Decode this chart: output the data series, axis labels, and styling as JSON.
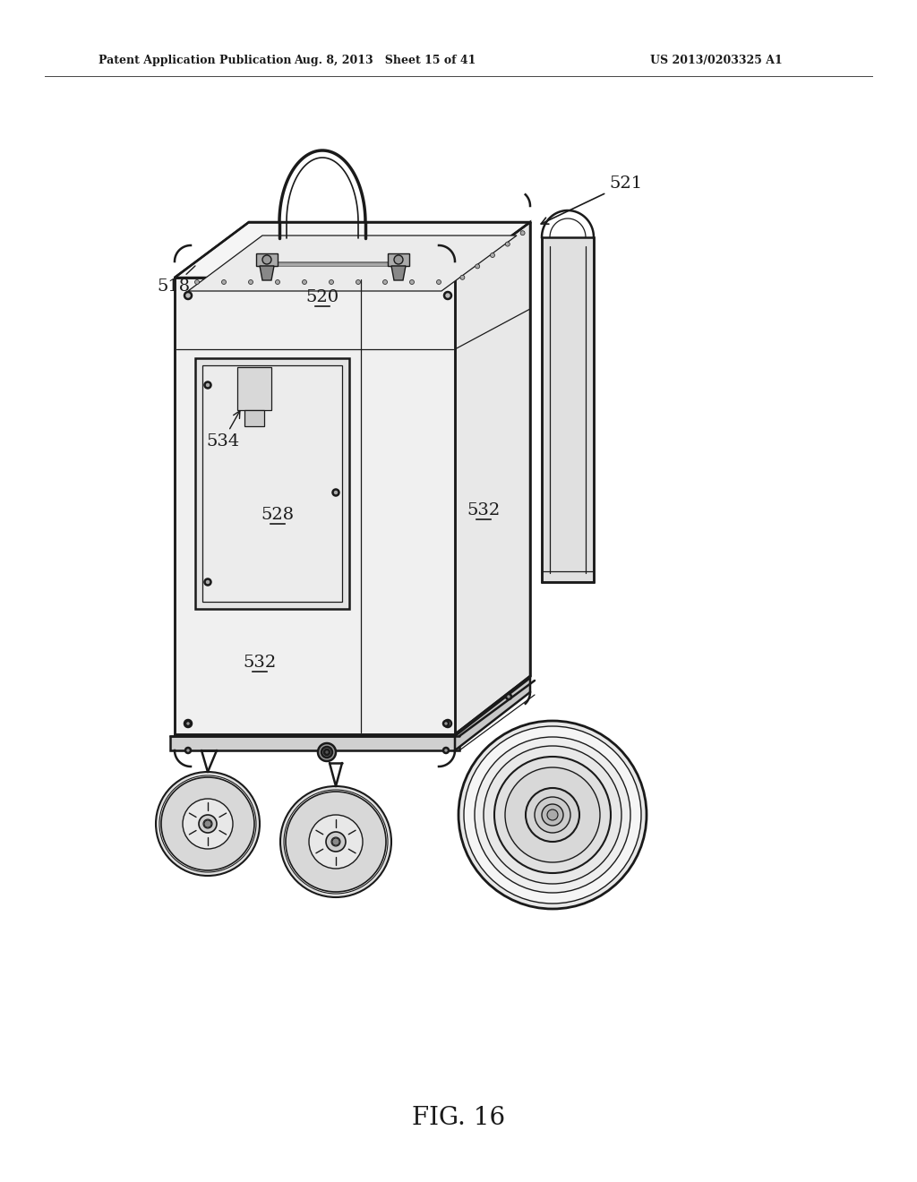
{
  "background_color": "#ffffff",
  "header_left": "Patent Application Publication",
  "header_center": "Aug. 8, 2013   Sheet 15 of 41",
  "header_right": "US 2013/0203325 A1",
  "figure_label": "FIG. 16",
  "line_color": "#1a1a1a",
  "text_color": "#1a1a1a",
  "lw_main": 1.8,
  "lw_thin": 0.9,
  "lw_thick": 2.5
}
